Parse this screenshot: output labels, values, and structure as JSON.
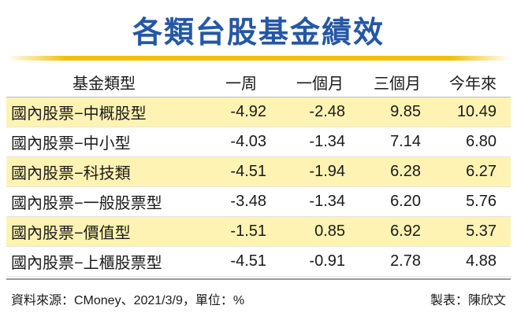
{
  "title": "各類台股基金績效",
  "colors": {
    "title": "#2457a6",
    "accent_rule": "#f2c000",
    "row_shade": "#fff3b3"
  },
  "chart_data": {
    "type": "table",
    "title": "各類台股基金績效",
    "columns": [
      "基金類型",
      "一周",
      "一個月",
      "三個月",
      "今年來"
    ],
    "rows": [
      [
        "國內股票−中概股型",
        "-4.92",
        "-2.48",
        "9.85",
        "10.49"
      ],
      [
        "國內股票−中小型",
        "-4.03",
        "-1.34",
        "7.14",
        "6.80"
      ],
      [
        "國內股票−科技類",
        "-4.51",
        "-1.94",
        "6.28",
        "6.27"
      ],
      [
        "國內股票−一般股票型",
        "-3.48",
        "-1.34",
        "6.20",
        "5.76"
      ],
      [
        "國內股票−價值型",
        "-1.51",
        "0.85",
        "6.92",
        "5.37"
      ],
      [
        "國內股票−上櫃股票型",
        "-4.51",
        "-0.91",
        "2.78",
        "4.88"
      ]
    ],
    "shaded_rows": [
      0,
      2,
      4
    ]
  },
  "footer": {
    "source": "資料來源：CMoney、2021/3/9，單位：%",
    "credit": "製表：陳欣文"
  }
}
